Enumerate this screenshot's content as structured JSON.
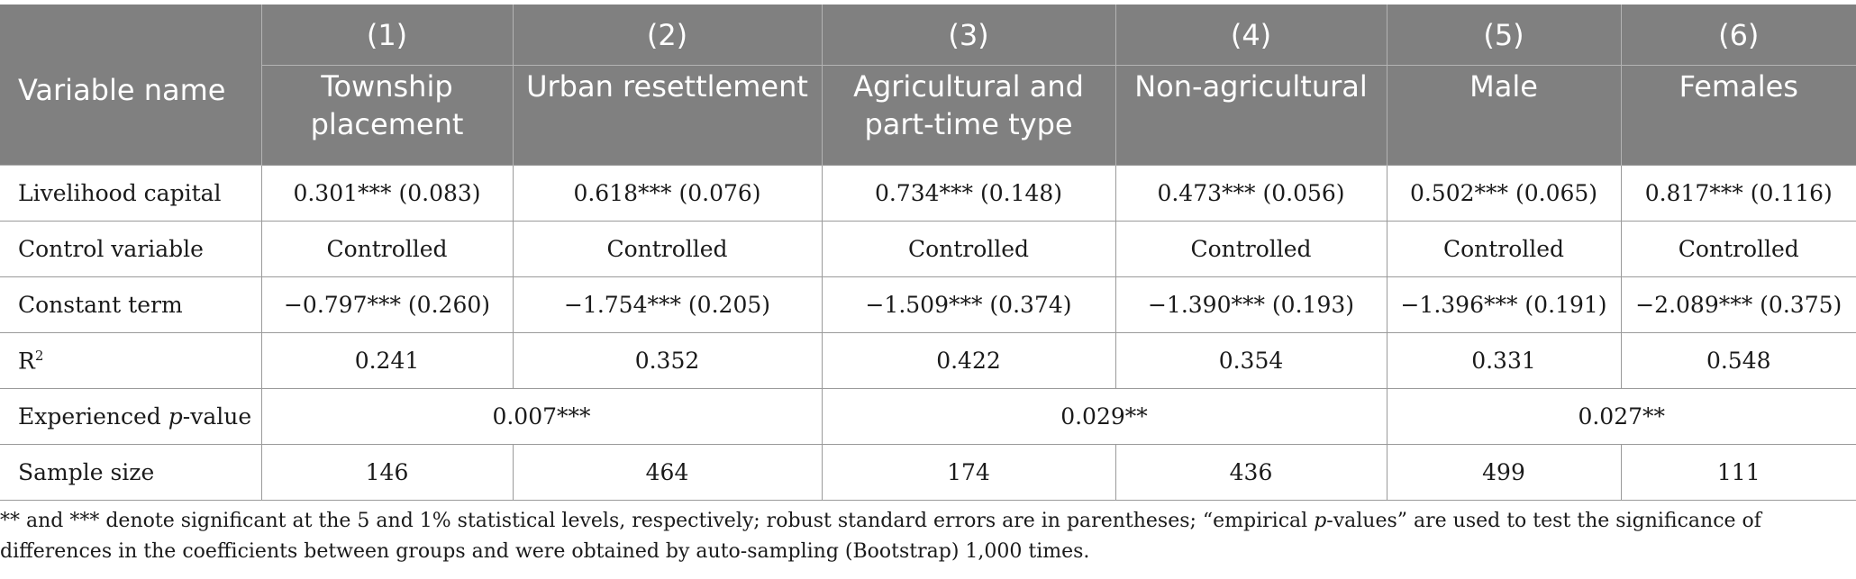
{
  "header": {
    "variable_name": "Variable name",
    "columns": [
      {
        "num": "(1)",
        "label": "Township placement"
      },
      {
        "num": "(2)",
        "label": "Urban resettlement"
      },
      {
        "num": "(3)",
        "label": "Agricultural and part-time type"
      },
      {
        "num": "(4)",
        "label": "Non-agricultural"
      },
      {
        "num": "(5)",
        "label": "Male"
      },
      {
        "num": "(6)",
        "label": "Females"
      }
    ]
  },
  "rows": {
    "livelihood": {
      "label": "Livelihood capital",
      "values": [
        "0.301*** (0.083)",
        "0.618*** (0.076)",
        "0.734*** (0.148)",
        "0.473*** (0.056)",
        "0.502*** (0.065)",
        "0.817*** (0.116)"
      ]
    },
    "control": {
      "label": "Control variable",
      "values": [
        "Controlled",
        "Controlled",
        "Controlled",
        "Controlled",
        "Controlled",
        "Controlled"
      ]
    },
    "constant": {
      "label": "Constant term",
      "values": [
        "−0.797*** (0.260)",
        "−1.754*** (0.205)",
        "−1.509*** (0.374)",
        "−1.390*** (0.193)",
        "−1.396*** (0.191)",
        "−2.089*** (0.375)"
      ]
    },
    "r2": {
      "label_base": "R",
      "label_sup": "2",
      "values": [
        "0.241",
        "0.352",
        "0.422",
        "0.354",
        "0.331",
        "0.548"
      ]
    },
    "experienced": {
      "label_pre": "Experienced ",
      "label_italic": "p",
      "label_post": "-value",
      "values": [
        "0.007***",
        "0.029**",
        "0.027**"
      ]
    },
    "sample": {
      "label": "Sample size",
      "values": [
        "146",
        "464",
        "174",
        "436",
        "499",
        "111"
      ]
    }
  },
  "note": {
    "part1": "** and *** denote significant at the 5 and 1% statistical levels, respectively; robust standard errors are in parentheses; “empirical ",
    "italic": "p",
    "part2": "-values” are used to test the significance of differences in the coefficients between groups and were obtained by auto-sampling (Bootstrap) 1,000 times."
  }
}
